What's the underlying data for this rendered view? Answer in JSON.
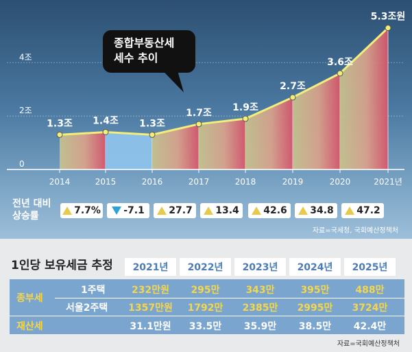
{
  "chart_data": {
    "type": "area",
    "x": [
      "2014",
      "2015",
      "2016",
      "2017",
      "2018",
      "2019",
      "2020",
      "2021년"
    ],
    "values": [
      1.3,
      1.4,
      1.3,
      1.7,
      1.9,
      2.7,
      3.6,
      5.3
    ],
    "value_labels": [
      "1.3조",
      "1.4조",
      "1.3조",
      "1.7조",
      "1.9조",
      "2.7조",
      "3.6조",
      "5.3조원"
    ],
    "yticks": [
      "4조",
      "2조",
      "0"
    ],
    "ylim": [
      0,
      5.6
    ],
    "callout": [
      "종합부동산세",
      "세수 추이"
    ],
    "change_label": [
      "전년 대비",
      "상승률"
    ],
    "changes": [
      {
        "dir": "up",
        "text": "7.7%"
      },
      {
        "dir": "down",
        "text": "-7.1"
      },
      {
        "dir": "up",
        "text": "27.7"
      },
      {
        "dir": "up",
        "text": "13.4"
      },
      {
        "dir": "up",
        "text": "42.6"
      },
      {
        "dir": "up",
        "text": "34.8"
      },
      {
        "dir": "up",
        "text": "47.2"
      }
    ],
    "source": "자료=국세청, 국회예산정책처",
    "colors": {
      "line": "#f3ee7a",
      "bar_2015": "#8fc3ec",
      "bar_start": "#c8c38d",
      "bar_end": "#d9546a"
    }
  },
  "table": {
    "title": "1인당 보유세금 추정",
    "years": [
      "2021년",
      "2022년",
      "2023년",
      "2024년",
      "2025년"
    ],
    "rows": [
      {
        "group": "종부세",
        "label": "1주택",
        "values": [
          "232만원",
          "295만",
          "343만",
          "395만",
          "488만"
        ]
      },
      {
        "group": "",
        "label": "서울2주택",
        "values": [
          "1357만원",
          "1792만",
          "2385만",
          "2995만",
          "3724만"
        ]
      },
      {
        "group": "재산세",
        "label": "",
        "values": [
          "31.1만원",
          "33.5만",
          "35.9만",
          "38.5만",
          "42.4만"
        ]
      }
    ],
    "source": "자료=국회예산정책처"
  }
}
